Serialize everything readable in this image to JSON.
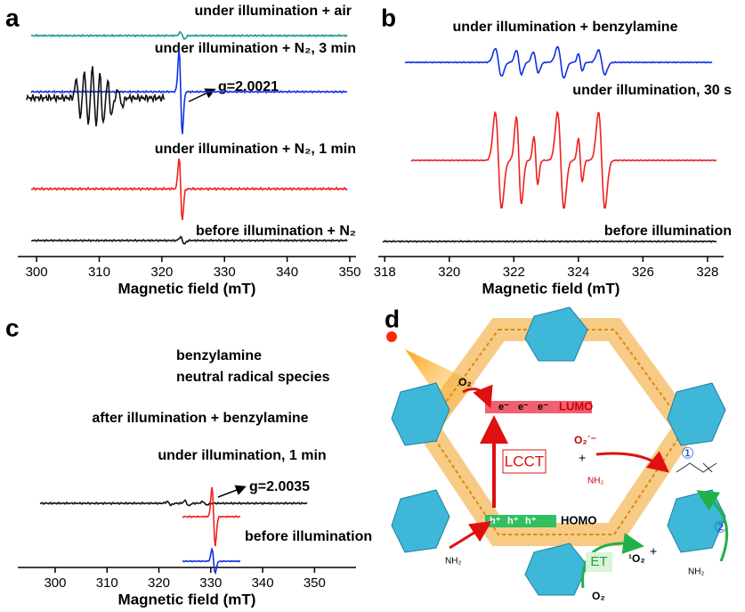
{
  "panels": [
    {
      "label": "a",
      "x_label": "Magnetic field (mT)",
      "xlim": [
        297,
        351
      ],
      "xticks": [
        300,
        310,
        320,
        330,
        340,
        350
      ],
      "traces": [
        "under illumination + air",
        "under illumination + N₂, 3 min",
        "under illumination + N₂, 1 min",
        "before illumination + N₂"
      ],
      "annotation": "g=2.0021"
    },
    {
      "label": "b",
      "x_label": "Magnetic field (mT)",
      "xlim": [
        317.8,
        328.5
      ],
      "xticks": [
        318,
        320,
        322,
        324,
        326,
        328
      ],
      "traces": [
        "under illumination + benzylamine",
        "under illumination, 30 s",
        "before illumination"
      ]
    },
    {
      "label": "c",
      "x_label": "Magnetic field (mT)",
      "xlim": [
        292.8,
        358
      ],
      "xticks": [
        300,
        310,
        320,
        330,
        340,
        350
      ],
      "traces": [
        "benzylamine",
        "neutral radical species",
        "after illumination + benzylamine",
        "under illumination, 1 min",
        "before illumination"
      ],
      "annotation": "g=2.0035"
    },
    {
      "label": "d",
      "labels": {
        "lumo": "LUMO",
        "homo": "HOMO",
        "lcct": "LCCT",
        "et": "ET",
        "o2_top": "O₂",
        "o2_bottom": "O₂",
        "superoxide": "O₂˙⁻",
        "plus1": "+",
        "plus2": "+",
        "singlet": "¹O₂",
        "step1": "①",
        "step2": "②",
        "nh2_a": "NH₂",
        "nh2_b": "NH₂",
        "nh3": "NH₂",
        "electron": "e⁻",
        "hole": "h⁺"
      }
    }
  ]
}
